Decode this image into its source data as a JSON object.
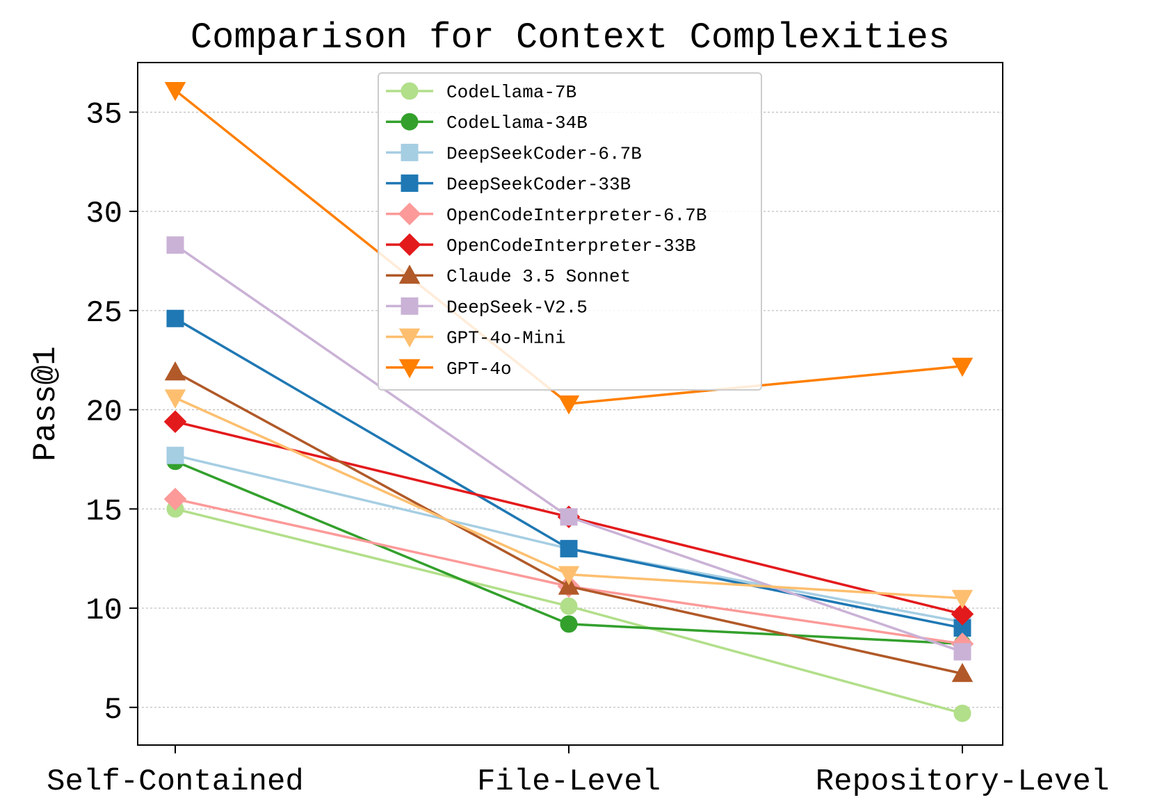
{
  "chart_data": {
    "type": "line",
    "title": "Comparison for Context Complexities",
    "xlabel": "",
    "ylabel": "Pass@1",
    "categories": [
      "Self-Contained",
      "File-Level",
      "Repository-Level"
    ],
    "ylim": [
      3.1,
      37.5
    ],
    "yticks": [
      5,
      10,
      15,
      20,
      25,
      30,
      35
    ],
    "grid": "horizontal-dotted",
    "legend_position": "upper-center",
    "series": [
      {
        "name": "CodeLlama-7B",
        "values": [
          15.0,
          10.1,
          4.7
        ],
        "color": "#b2df8a",
        "marker": "circle"
      },
      {
        "name": "CodeLlama-34B",
        "values": [
          17.4,
          9.2,
          8.2
        ],
        "color": "#33a02c",
        "marker": "circle"
      },
      {
        "name": "DeepSeekCoder-6.7B",
        "values": [
          17.7,
          13.0,
          9.3
        ],
        "color": "#a6cee3",
        "marker": "square"
      },
      {
        "name": "DeepSeekCoder-33B",
        "values": [
          24.6,
          13.0,
          9.0
        ],
        "color": "#1f78b4",
        "marker": "square"
      },
      {
        "name": "OpenCodeInterpreter-6.7B",
        "values": [
          15.5,
          11.1,
          8.2
        ],
        "color": "#fb9a99",
        "marker": "diamond"
      },
      {
        "name": "OpenCodeInterpreter-33B",
        "values": [
          19.4,
          14.6,
          9.7
        ],
        "color": "#e31a1c",
        "marker": "diamond"
      },
      {
        "name": "Claude 3.5 Sonnet",
        "values": [
          21.9,
          11.1,
          6.7
        ],
        "color": "#b15928",
        "marker": "triangle-up"
      },
      {
        "name": "DeepSeek-V2.5",
        "values": [
          28.3,
          14.6,
          7.8
        ],
        "color": "#cab2d6",
        "marker": "square"
      },
      {
        "name": "GPT-4o-Mini",
        "values": [
          20.6,
          11.7,
          10.5
        ],
        "color": "#fdbf6f",
        "marker": "triangle-down"
      },
      {
        "name": "GPT-4o",
        "values": [
          36.1,
          20.3,
          22.2
        ],
        "color": "#ff7f00",
        "marker": "triangle-down"
      }
    ]
  }
}
